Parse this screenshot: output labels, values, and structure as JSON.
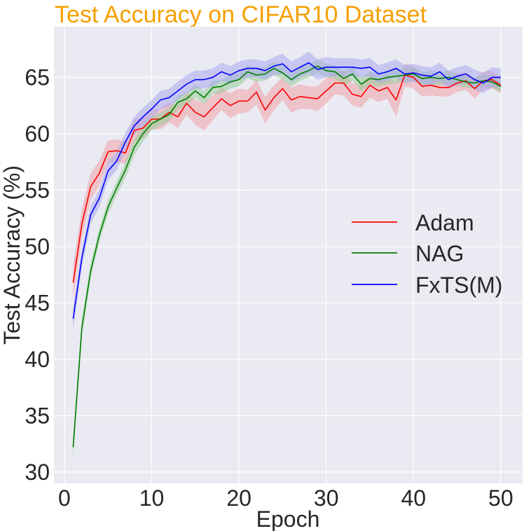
{
  "chart_data": {
    "type": "line",
    "title": "Test Accuracy on CIFAR10 Dataset",
    "title_color": "#f5a000",
    "xlabel": "Epoch",
    "ylabel": "Test Accuracy (%)",
    "xlim": [
      -1.2,
      52.5
    ],
    "ylim": [
      29,
      69.5
    ],
    "xticks": [
      0,
      10,
      20,
      30,
      40,
      50
    ],
    "yticks": [
      30,
      35,
      40,
      45,
      50,
      55,
      60,
      65
    ],
    "grid": true,
    "background": "#eaeaf2",
    "legend_position": "right",
    "x": [
      1,
      2,
      3,
      4,
      5,
      6,
      7,
      8,
      9,
      10,
      11,
      12,
      13,
      14,
      15,
      16,
      17,
      18,
      19,
      20,
      21,
      22,
      23,
      24,
      25,
      26,
      27,
      28,
      29,
      30,
      31,
      32,
      33,
      34,
      35,
      36,
      37,
      38,
      39,
      40,
      41,
      42,
      43,
      44,
      45,
      46,
      47,
      48,
      49,
      50
    ],
    "series": [
      {
        "name": "Adam",
        "color": "#ff0000",
        "band_color": "#f0a0a8",
        "values": [
          46.8,
          52.0,
          55.3,
          56.5,
          58.4,
          58.5,
          58.3,
          60.3,
          60.5,
          61.3,
          61.3,
          61.9,
          61.5,
          62.7,
          61.9,
          61.5,
          62.3,
          63.1,
          62.5,
          62.9,
          62.9,
          63.7,
          62.1,
          63.2,
          64.0,
          63.0,
          63.3,
          63.2,
          63.1,
          63.8,
          64.5,
          64.5,
          63.5,
          63.3,
          64.3,
          63.8,
          64.1,
          63.0,
          65.2,
          65.0,
          64.2,
          64.3,
          64.1,
          64.1,
          64.5,
          64.7,
          64.0,
          64.7,
          64.8,
          64.3
        ],
        "spread": [
          1.5,
          1.3,
          1.2,
          1.1,
          1.0,
          1.0,
          1.0,
          1.0,
          0.9,
          0.9,
          0.9,
          0.9,
          1.0,
          1.0,
          1.1,
          1.2,
          1.1,
          1.0,
          1.1,
          1.1,
          1.0,
          1.1,
          1.2,
          1.1,
          1.0,
          1.1,
          1.1,
          1.0,
          1.1,
          1.1,
          1.0,
          1.1,
          1.0,
          1.0,
          1.1,
          1.0,
          1.0,
          1.5,
          1.0,
          1.0,
          0.9,
          0.9,
          0.8,
          0.8,
          0.8,
          0.8,
          0.9,
          0.8,
          0.8,
          0.7
        ]
      },
      {
        "name": "NAG",
        "color": "#008000",
        "band_color": "#99cc99",
        "values": [
          32.2,
          42.8,
          47.8,
          51.0,
          53.5,
          55.2,
          56.8,
          58.8,
          60.0,
          60.9,
          61.3,
          61.7,
          62.8,
          63.1,
          63.8,
          63.2,
          64.1,
          64.2,
          64.6,
          64.8,
          65.5,
          65.2,
          65.3,
          65.8,
          65.4,
          64.8,
          65.3,
          65.6,
          66.0,
          65.6,
          65.5,
          64.9,
          65.3,
          64.4,
          64.9,
          64.8,
          65.0,
          65.1,
          65.2,
          65.3,
          64.9,
          65.0,
          64.9,
          65.0,
          64.8,
          64.6,
          64.5,
          64.7,
          64.6,
          64.2
        ],
        "spread": [
          1.0,
          0.8,
          0.7,
          0.6,
          0.6,
          0.6,
          0.7,
          0.7,
          0.7,
          0.6,
          0.6,
          0.6,
          0.6,
          0.6,
          0.6,
          0.6,
          0.6,
          0.6,
          0.6,
          0.6,
          0.6,
          0.6,
          0.6,
          0.6,
          0.6,
          0.6,
          0.6,
          0.6,
          0.6,
          0.6,
          0.6,
          0.6,
          0.6,
          0.6,
          0.6,
          0.6,
          0.6,
          0.6,
          0.6,
          0.6,
          0.6,
          0.6,
          0.6,
          0.6,
          0.5,
          0.5,
          0.5,
          0.5,
          0.5,
          0.5
        ]
      },
      {
        "name": "FxTS(M)",
        "color": "#0000ff",
        "band_color": "#a8a8f0",
        "values": [
          43.6,
          49.0,
          52.8,
          54.3,
          56.7,
          57.6,
          59.3,
          60.7,
          61.5,
          62.2,
          63.0,
          63.2,
          63.8,
          64.4,
          64.8,
          64.8,
          65.0,
          65.5,
          65.2,
          65.6,
          65.8,
          65.8,
          65.6,
          66.0,
          66.2,
          65.5,
          65.9,
          66.3,
          65.7,
          65.9,
          65.9,
          65.9,
          65.9,
          65.8,
          65.9,
          65.3,
          65.5,
          65.8,
          65.3,
          65.4,
          65.2,
          65.1,
          65.5,
          64.8,
          65.1,
          65.3,
          64.8,
          64.5,
          65.0,
          65.0
        ],
        "spread": [
          1.0,
          0.9,
          0.8,
          0.8,
          0.8,
          0.8,
          0.8,
          0.8,
          0.8,
          0.8,
          0.8,
          0.8,
          0.8,
          0.8,
          0.8,
          0.8,
          0.8,
          0.8,
          0.8,
          0.8,
          0.8,
          0.8,
          0.8,
          0.8,
          0.9,
          0.9,
          0.9,
          1.0,
          0.9,
          0.9,
          0.8,
          0.8,
          0.8,
          0.8,
          0.8,
          0.8,
          0.8,
          0.8,
          0.8,
          0.8,
          0.8,
          0.8,
          0.8,
          0.8,
          0.8,
          0.8,
          0.9,
          0.9,
          0.9,
          0.8
        ]
      }
    ]
  }
}
